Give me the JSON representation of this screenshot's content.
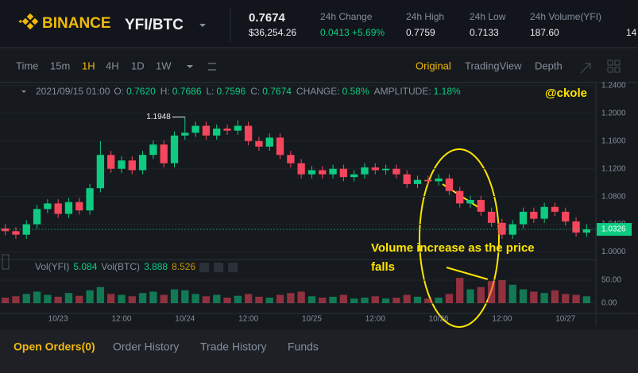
{
  "header": {
    "brand": "BINANCE",
    "pair": "YFI/BTC",
    "price": "0.7674",
    "price_usd": "$36,254.26",
    "stats": [
      {
        "label": "24h Change",
        "value": "0.0413 +5.69%"
      },
      {
        "label": "24h High",
        "value": "0.7759"
      },
      {
        "label": "24h Low",
        "value": "0.7133"
      },
      {
        "label": "24h Volume(YFI)",
        "value": "187.60"
      }
    ],
    "stats_cut": "14"
  },
  "toolbar": {
    "intervals": [
      "Time",
      "15m",
      "1H",
      "4H",
      "1D",
      "1W"
    ],
    "views": [
      "Original",
      "TradingView",
      "Depth"
    ]
  },
  "info": {
    "date": "2021/09/15 01:00",
    "fields": [
      {
        "k": "O:",
        "v": "0.7620"
      },
      {
        "k": "H:",
        "v": "0.7686"
      },
      {
        "k": "L:",
        "v": "0.7596"
      },
      {
        "k": "C:",
        "v": "0.7674"
      },
      {
        "k": "CHANGE:",
        "v": "0.58%"
      },
      {
        "k": "AMPLITUDE:",
        "v": "1.18%"
      }
    ]
  },
  "volume_legend": [
    "Vol(YFI)",
    "5.084",
    "Vol(BTC)",
    "3.888",
    "8.526"
  ],
  "annotations": {
    "watermark": "@ckole",
    "note": [
      "Volume increase as the price",
      "falls"
    ]
  },
  "tabs": [
    "Open Orders(0)",
    "Order History",
    "Trade History",
    "Funds"
  ],
  "chart_data": {
    "type": "candlestick",
    "up_color": "#0ecb81",
    "down_color": "#f6465d",
    "ylim": [
      0.988,
      1.249
    ],
    "yticks": [
      {
        "value": 1,
        "label": "1.0000"
      },
      {
        "value": 1.04,
        "label": "1.0400"
      },
      {
        "value": 1.08,
        "label": "1.0800"
      },
      {
        "value": 1.12,
        "label": "1.1200"
      },
      {
        "value": 1.16,
        "label": "1.1600"
      },
      {
        "value": 1.2,
        "label": "1.2000"
      },
      {
        "value": 1.24,
        "label": "1.2400"
      }
    ],
    "categories": [
      null,
      null,
      null,
      null,
      null,
      "10/23",
      null,
      null,
      null,
      null,
      null,
      "12:00",
      null,
      null,
      null,
      null,
      null,
      "10/24",
      null,
      null,
      null,
      null,
      null,
      "12:00",
      null,
      null,
      null,
      null,
      null,
      "10/25",
      null,
      null,
      null,
      null,
      null,
      "12:00",
      null,
      null,
      null,
      null,
      null,
      "10/26",
      null,
      null,
      null,
      null,
      null,
      "12:00",
      null,
      null,
      null,
      null,
      null,
      "10/27",
      null,
      null
    ],
    "candles": [
      [
        1.034,
        1.04,
        1.024,
        1.03
      ],
      [
        1.03,
        1.036,
        1.019,
        1.025
      ],
      [
        1.025,
        1.046,
        1.019,
        1.04
      ],
      [
        1.04,
        1.068,
        1.034,
        1.062
      ],
      [
        1.062,
        1.076,
        1.056,
        1.07
      ],
      [
        1.07,
        1.076,
        1.049,
        1.055
      ],
      [
        1.055,
        1.078,
        1.049,
        1.072
      ],
      [
        1.072,
        1.078,
        1.054,
        1.06
      ],
      [
        1.06,
        1.098,
        1.054,
        1.092
      ],
      [
        1.092,
        1.16,
        1.086,
        1.14
      ],
      [
        1.14,
        1.146,
        1.114,
        1.12
      ],
      [
        1.12,
        1.138,
        1.114,
        1.132
      ],
      [
        1.132,
        1.138,
        1.112,
        1.118
      ],
      [
        1.118,
        1.146,
        1.112,
        1.14
      ],
      [
        1.14,
        1.161,
        1.134,
        1.155
      ],
      [
        1.155,
        1.161,
        1.122,
        1.128
      ],
      [
        1.128,
        1.174,
        1.122,
        1.168
      ],
      [
        1.168,
        1.1948,
        1.162,
        1.172
      ],
      [
        1.172,
        1.188,
        1.166,
        1.182
      ],
      [
        1.182,
        1.188,
        1.162,
        1.168
      ],
      [
        1.168,
        1.184,
        1.162,
        1.178
      ],
      [
        1.178,
        1.184,
        1.169,
        1.175
      ],
      [
        1.175,
        1.19,
        1.169,
        1.182
      ],
      [
        1.182,
        1.188,
        1.154,
        1.16
      ],
      [
        1.16,
        1.166,
        1.146,
        1.152
      ],
      [
        1.152,
        1.171,
        1.146,
        1.165
      ],
      [
        1.165,
        1.171,
        1.134,
        1.14
      ],
      [
        1.14,
        1.146,
        1.122,
        1.128
      ],
      [
        1.128,
        1.134,
        1.106,
        1.112
      ],
      [
        1.112,
        1.124,
        1.106,
        1.118
      ],
      [
        1.118,
        1.124,
        1.106,
        1.112
      ],
      [
        1.112,
        1.126,
        1.106,
        1.12
      ],
      [
        1.12,
        1.126,
        1.102,
        1.108
      ],
      [
        1.108,
        1.118,
        1.102,
        1.112
      ],
      [
        1.112,
        1.128,
        1.106,
        1.122
      ],
      [
        1.122,
        1.128,
        1.112,
        1.118
      ],
      [
        1.118,
        1.126,
        1.112,
        1.12
      ],
      [
        1.12,
        1.126,
        1.106,
        1.112
      ],
      [
        1.112,
        1.118,
        1.092,
        1.098
      ],
      [
        1.098,
        1.11,
        1.092,
        1.104
      ],
      [
        1.104,
        1.11,
        1.096,
        1.102
      ],
      [
        1.102,
        1.112,
        1.096,
        1.106
      ],
      [
        1.106,
        1.112,
        1.082,
        1.088
      ],
      [
        1.088,
        1.094,
        1.064,
        1.07
      ],
      [
        1.07,
        1.081,
        1.064,
        1.075
      ],
      [
        1.075,
        1.081,
        1.052,
        1.058
      ],
      [
        1.058,
        1.064,
        1.036,
        1.042
      ],
      [
        1.042,
        1.048,
        1.019,
        1.025
      ],
      [
        1.025,
        1.046,
        1.019,
        1.04
      ],
      [
        1.04,
        1.064,
        1.034,
        1.058
      ],
      [
        1.058,
        1.064,
        1.042,
        1.048
      ],
      [
        1.048,
        1.071,
        1.042,
        1.065
      ],
      [
        1.065,
        1.071,
        1.052,
        1.058
      ],
      [
        1.058,
        1.064,
        1.038,
        1.044
      ],
      [
        1.044,
        1.05,
        1.022,
        1.028
      ],
      [
        1.028,
        1.04,
        1.022,
        1.0326
      ]
    ],
    "volume": {
      "ylim": [
        0,
        70
      ],
      "yticks": [
        {
          "value": 0,
          "label": "0.00"
        },
        {
          "value": 50,
          "label": "50.00"
        }
      ],
      "values": [
        12,
        15,
        20,
        25,
        18,
        14,
        22,
        16,
        28,
        35,
        20,
        18,
        15,
        22,
        25,
        18,
        30,
        28,
        20,
        15,
        18,
        12,
        16,
        20,
        14,
        12,
        18,
        22,
        25,
        15,
        12,
        14,
        18,
        10,
        12,
        15,
        10,
        12,
        18,
        14,
        10,
        12,
        20,
        55,
        30,
        35,
        48,
        50,
        40,
        30,
        25,
        22,
        28,
        20,
        18,
        15
      ]
    }
  }
}
